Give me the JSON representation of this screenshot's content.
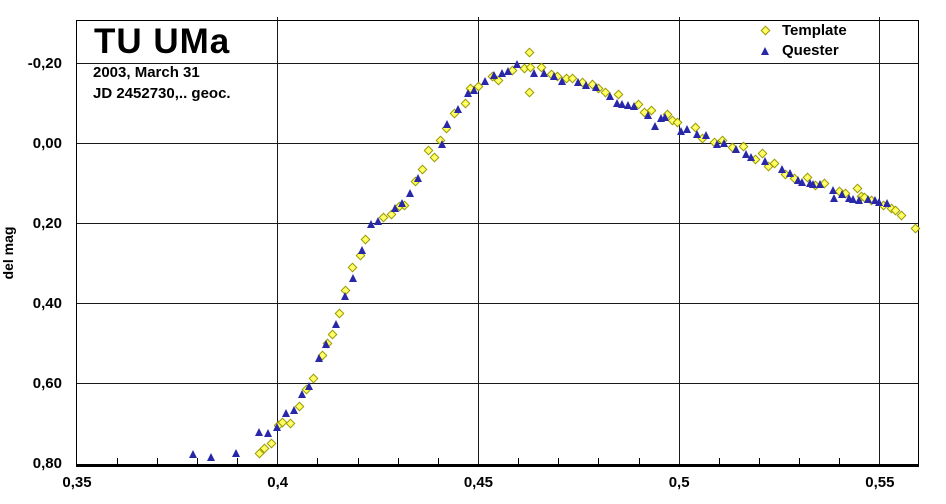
{
  "header": {
    "title": "TU UMa",
    "subtitle_line1": "2003, March 31",
    "subtitle_line2": "JD 2452730,..  geoc."
  },
  "chart_data": {
    "type": "scatter",
    "title": "TU UMa",
    "subtitle": [
      "2003, March 31",
      "JD 2452730,..  geoc."
    ],
    "xlabel": "",
    "ylabel": "del mag",
    "y_axis_inverted": true,
    "grid": true,
    "legend_position": "top-right",
    "x_axis": {
      "min": 0.35,
      "max": 0.5595,
      "gridlines": [
        0.4,
        0.45,
        0.5,
        0.55
      ],
      "minor_tick_step": 0.01,
      "tick_labels": [
        {
          "v": 0.35,
          "label": "0,35"
        },
        {
          "v": 0.4,
          "label": "0,4"
        },
        {
          "v": 0.45,
          "label": "0,45"
        },
        {
          "v": 0.5,
          "label": "0,5"
        },
        {
          "v": 0.55,
          "label": "0,55"
        }
      ]
    },
    "y_axis": {
      "top": -0.3068,
      "bottom": 0.8,
      "gridlines": [
        -0.2,
        0.0,
        0.2,
        0.4,
        0.6
      ],
      "tick_labels": [
        {
          "v": -0.2,
          "label": "-0,20"
        },
        {
          "v": 0.0,
          "label": "0,00"
        },
        {
          "v": 0.2,
          "label": "0,20"
        },
        {
          "v": 0.4,
          "label": "0,40"
        },
        {
          "v": 0.6,
          "label": "0,60"
        },
        {
          "v": 0.8,
          "label": "0,80"
        }
      ]
    },
    "series": [
      {
        "name": "Template",
        "marker": "diamond",
        "fill": "#FFFF55",
        "edge": "#9A9A00",
        "points": [
          [
            0.3955,
            0.775
          ],
          [
            0.3968,
            0.761
          ],
          [
            0.3985,
            0.748
          ],
          [
            0.4003,
            0.703
          ],
          [
            0.4013,
            0.696
          ],
          [
            0.4032,
            0.7
          ],
          [
            0.4055,
            0.656
          ],
          [
            0.4072,
            0.613
          ],
          [
            0.409,
            0.586
          ],
          [
            0.4112,
            0.53
          ],
          [
            0.4125,
            0.5
          ],
          [
            0.4137,
            0.476
          ],
          [
            0.4154,
            0.425
          ],
          [
            0.417,
            0.366
          ],
          [
            0.4187,
            0.31
          ],
          [
            0.4205,
            0.28
          ],
          [
            0.4218,
            0.239
          ],
          [
            0.4263,
            0.183
          ],
          [
            0.4283,
            0.176
          ],
          [
            0.4303,
            0.156
          ],
          [
            0.4316,
            0.153
          ],
          [
            0.4343,
            0.093
          ],
          [
            0.436,
            0.064
          ],
          [
            0.4376,
            0.016
          ],
          [
            0.439,
            0.035
          ],
          [
            0.4405,
            -0.007
          ],
          [
            0.442,
            -0.037
          ],
          [
            0.444,
            -0.075
          ],
          [
            0.4468,
            -0.1
          ],
          [
            0.448,
            -0.138
          ],
          [
            0.45,
            -0.144
          ],
          [
            0.4535,
            -0.169
          ],
          [
            0.455,
            -0.159
          ],
          [
            0.4585,
            -0.184
          ],
          [
            0.4614,
            -0.187
          ],
          [
            0.4627,
            -0.229
          ],
          [
            0.4627,
            -0.129
          ],
          [
            0.463,
            -0.19
          ],
          [
            0.4658,
            -0.19
          ],
          [
            0.4683,
            -0.174
          ],
          [
            0.4698,
            -0.167
          ],
          [
            0.472,
            -0.162
          ],
          [
            0.4734,
            -0.164
          ],
          [
            0.476,
            -0.152
          ],
          [
            0.4784,
            -0.149
          ],
          [
            0.48,
            -0.137
          ],
          [
            0.4816,
            -0.127
          ],
          [
            0.485,
            -0.124
          ],
          [
            0.4898,
            -0.097
          ],
          [
            0.4913,
            -0.077
          ],
          [
            0.493,
            -0.082
          ],
          [
            0.4972,
            -0.074
          ],
          [
            0.4983,
            -0.059
          ],
          [
            0.4995,
            -0.054
          ],
          [
            0.504,
            -0.04
          ],
          [
            0.5057,
            -0.014
          ],
          [
            0.5087,
            -0.002
          ],
          [
            0.5107,
            -0.007
          ],
          [
            0.5134,
            0.01
          ],
          [
            0.516,
            0.006
          ],
          [
            0.5189,
            0.04
          ],
          [
            0.5208,
            0.025
          ],
          [
            0.5223,
            0.056
          ],
          [
            0.5238,
            0.05
          ],
          [
            0.5266,
            0.076
          ],
          [
            0.5288,
            0.086
          ],
          [
            0.532,
            0.083
          ],
          [
            0.534,
            0.103
          ],
          [
            0.5363,
            0.098
          ],
          [
            0.54,
            0.12
          ],
          [
            0.5415,
            0.123
          ],
          [
            0.5445,
            0.111
          ],
          [
            0.5455,
            0.131
          ],
          [
            0.5462,
            0.133
          ],
          [
            0.5478,
            0.141
          ],
          [
            0.5508,
            0.153
          ],
          [
            0.5528,
            0.161
          ],
          [
            0.554,
            0.166
          ],
          [
            0.5555,
            0.18
          ],
          [
            0.559,
            0.211
          ]
        ]
      },
      {
        "name": "Quester",
        "marker": "triangle",
        "fill": "#2828A8",
        "edge": "#000060",
        "points": [
          [
            0.3789,
            0.775
          ],
          [
            0.3836,
            0.782
          ],
          [
            0.3898,
            0.773
          ],
          [
            0.3955,
            0.72
          ],
          [
            0.3978,
            0.722
          ],
          [
            0.4,
            0.708
          ],
          [
            0.4023,
            0.673
          ],
          [
            0.4042,
            0.666
          ],
          [
            0.4062,
            0.626
          ],
          [
            0.4078,
            0.606
          ],
          [
            0.4105,
            0.536
          ],
          [
            0.4122,
            0.5
          ],
          [
            0.4147,
            0.45
          ],
          [
            0.417,
            0.38
          ],
          [
            0.4188,
            0.335
          ],
          [
            0.421,
            0.266
          ],
          [
            0.4233,
            0.2
          ],
          [
            0.425,
            0.193
          ],
          [
            0.4293,
            0.161
          ],
          [
            0.431,
            0.148
          ],
          [
            0.433,
            0.123
          ],
          [
            0.435,
            0.085
          ],
          [
            0.441,
            0.0
          ],
          [
            0.4423,
            -0.05
          ],
          [
            0.445,
            -0.087
          ],
          [
            0.4475,
            -0.127
          ],
          [
            0.449,
            -0.134
          ],
          [
            0.4517,
            -0.157
          ],
          [
            0.454,
            -0.172
          ],
          [
            0.456,
            -0.176
          ],
          [
            0.4575,
            -0.182
          ],
          [
            0.4597,
            -0.2
          ],
          [
            0.464,
            -0.176
          ],
          [
            0.4665,
            -0.178
          ],
          [
            0.469,
            -0.17
          ],
          [
            0.471,
            -0.158
          ],
          [
            0.4749,
            -0.154
          ],
          [
            0.477,
            -0.147
          ],
          [
            0.4795,
            -0.142
          ],
          [
            0.4828,
            -0.119
          ],
          [
            0.4846,
            -0.102
          ],
          [
            0.4858,
            -0.1
          ],
          [
            0.4873,
            -0.097
          ],
          [
            0.489,
            -0.094
          ],
          [
            0.4923,
            -0.072
          ],
          [
            0.494,
            -0.044
          ],
          [
            0.4955,
            -0.064
          ],
          [
            0.4967,
            -0.067
          ],
          [
            0.5005,
            -0.032
          ],
          [
            0.502,
            -0.037
          ],
          [
            0.5045,
            -0.025
          ],
          [
            0.5067,
            -0.022
          ],
          [
            0.5095,
            0.0
          ],
          [
            0.5114,
            -0.002
          ],
          [
            0.5144,
            0.014
          ],
          [
            0.5169,
            0.025
          ],
          [
            0.518,
            0.033
          ],
          [
            0.5214,
            0.043
          ],
          [
            0.5258,
            0.063
          ],
          [
            0.5278,
            0.073
          ],
          [
            0.5298,
            0.091
          ],
          [
            0.5308,
            0.096
          ],
          [
            0.5328,
            0.098
          ],
          [
            0.5335,
            0.101
          ],
          [
            0.5353,
            0.101
          ],
          [
            0.5385,
            0.116
          ],
          [
            0.5388,
            0.136
          ],
          [
            0.5406,
            0.125
          ],
          [
            0.5425,
            0.135
          ],
          [
            0.5435,
            0.138
          ],
          [
            0.545,
            0.141
          ],
          [
            0.5472,
            0.139
          ],
          [
            0.5488,
            0.141
          ],
          [
            0.55,
            0.145
          ],
          [
            0.5518,
            0.148
          ]
        ]
      }
    ]
  }
}
